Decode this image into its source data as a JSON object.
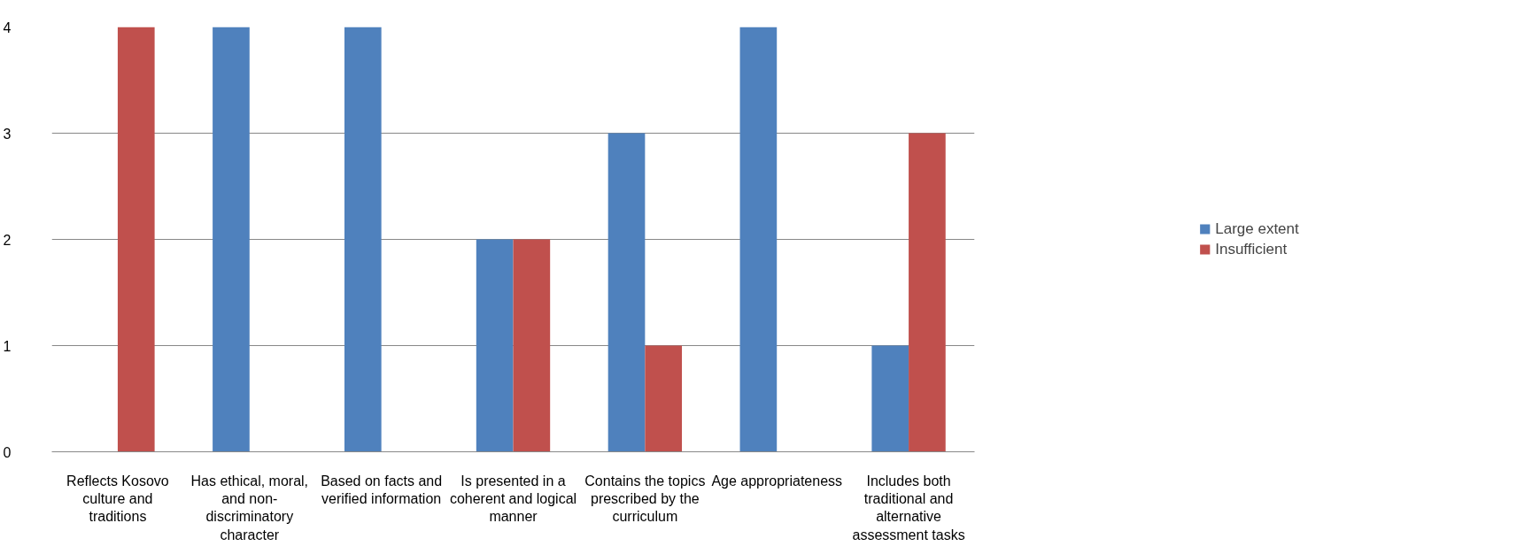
{
  "chart_data": {
    "type": "bar",
    "categories": [
      "Reflects Kosovo culture and traditions",
      "Has ethical, moral, and non-discriminatory character",
      "Based on facts and verified information",
      "Is presented in a coherent and logical manner",
      "Contains the topics prescribed by the curriculum",
      "Age appropriateness",
      "Includes both traditional and alternative assessment tasks"
    ],
    "series": [
      {
        "name": "Large extent",
        "color": "#4f81bd",
        "values": [
          0,
          4,
          4,
          2,
          3,
          4,
          1
        ]
      },
      {
        "name": "Insufficient",
        "color": "#c0504d",
        "values": [
          4,
          0,
          0,
          2,
          1,
          0,
          3
        ]
      }
    ],
    "ylim": [
      0,
      4
    ],
    "yticks": [
      0,
      1,
      2,
      3,
      4
    ],
    "grid": "y",
    "legend": "right"
  }
}
